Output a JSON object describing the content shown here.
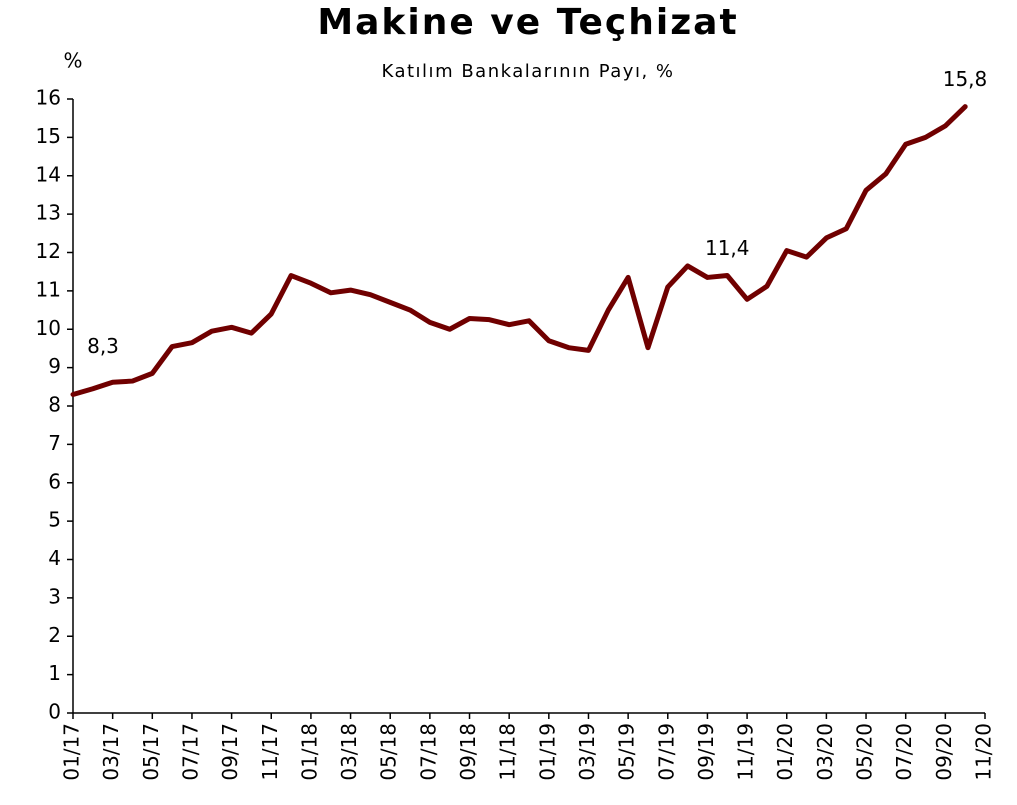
{
  "chart_data": {
    "type": "line",
    "title": "Makine ve Teçhizat",
    "subtitle": "Katılım Bankalarının Payı, %",
    "y_label": "%",
    "categories": [
      "01/17",
      null,
      "03/17",
      null,
      "05/17",
      null,
      "07/17",
      null,
      "09/17",
      null,
      "11/17",
      null,
      "01/18",
      null,
      "03/18",
      null,
      "05/18",
      null,
      "07/18",
      null,
      "09/18",
      null,
      "11/18",
      null,
      "01/19",
      null,
      "03/19",
      null,
      "05/19",
      null,
      "07/19",
      null,
      "09/19",
      null,
      "11/19",
      null,
      "01/20",
      null,
      "03/20",
      null,
      "05/20",
      null,
      "07/20",
      null,
      "09/20",
      null,
      "11/20"
    ],
    "values": [
      8.3,
      8.45,
      8.62,
      8.65,
      8.85,
      9.55,
      9.65,
      9.95,
      10.05,
      9.9,
      10.4,
      11.4,
      11.2,
      10.95,
      11.02,
      10.9,
      10.7,
      10.5,
      10.18,
      10.0,
      10.28,
      10.25,
      10.12,
      10.22,
      9.7,
      9.52,
      9.45,
      10.5,
      11.35,
      9.52,
      11.1,
      11.65,
      11.35,
      11.4,
      10.78,
      11.12,
      12.05,
      11.88,
      12.38,
      12.62,
      13.62,
      14.05,
      14.82,
      15.0,
      15.3,
      15.8,
      null
    ],
    "value_labels": [
      "8,3",
      null,
      null,
      null,
      null,
      null,
      null,
      null,
      null,
      null,
      null,
      null,
      null,
      null,
      null,
      null,
      null,
      null,
      null,
      null,
      null,
      null,
      null,
      null,
      null,
      null,
      null,
      null,
      null,
      null,
      null,
      null,
      null,
      "11,4",
      null,
      null,
      null,
      null,
      null,
      null,
      null,
      null,
      null,
      null,
      null,
      "15,8",
      null
    ],
    "color": "#700000",
    "ylim": [
      0,
      16
    ],
    "yticks": [
      0,
      1,
      2,
      3,
      4,
      5,
      6,
      7,
      8,
      9,
      10,
      11,
      12,
      13,
      14,
      15,
      16
    ]
  }
}
